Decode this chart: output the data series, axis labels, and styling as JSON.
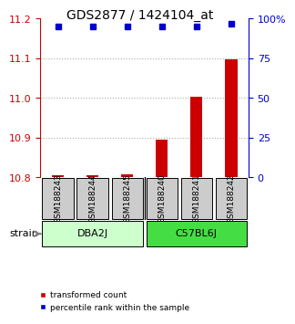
{
  "title": "GDS2877 / 1424104_at",
  "samples": [
    "GSM188243",
    "GSM188244",
    "GSM188245",
    "GSM188240",
    "GSM188241",
    "GSM188242"
  ],
  "groups": [
    {
      "name": "DBA2J",
      "indices": [
        0,
        1,
        2
      ],
      "color": "#ccffcc"
    },
    {
      "name": "C57BL6J",
      "indices": [
        3,
        4,
        5
      ],
      "color": "#44dd44"
    }
  ],
  "red_values": [
    10.805,
    10.805,
    10.807,
    10.895,
    11.003,
    11.098
  ],
  "blue_values": [
    95,
    95,
    95,
    95,
    95,
    97
  ],
  "ylim_left": [
    10.8,
    11.2
  ],
  "ylim_right": [
    0,
    100
  ],
  "yticks_left": [
    10.8,
    10.9,
    11.0,
    11.1,
    11.2
  ],
  "yticks_right": [
    0,
    25,
    50,
    75,
    100
  ],
  "ytick_labels_right": [
    "0",
    "25",
    "50",
    "75",
    "100%"
  ],
  "left_axis_color": "#cc0000",
  "right_axis_color": "#0000cc",
  "bar_color": "#cc0000",
  "dot_color": "#0000cc",
  "grid_color": "#aaaaaa",
  "sample_box_color": "#cccccc",
  "legend_red_label": "transformed count",
  "legend_blue_label": "percentile rank within the sample",
  "strain_label": "strain"
}
